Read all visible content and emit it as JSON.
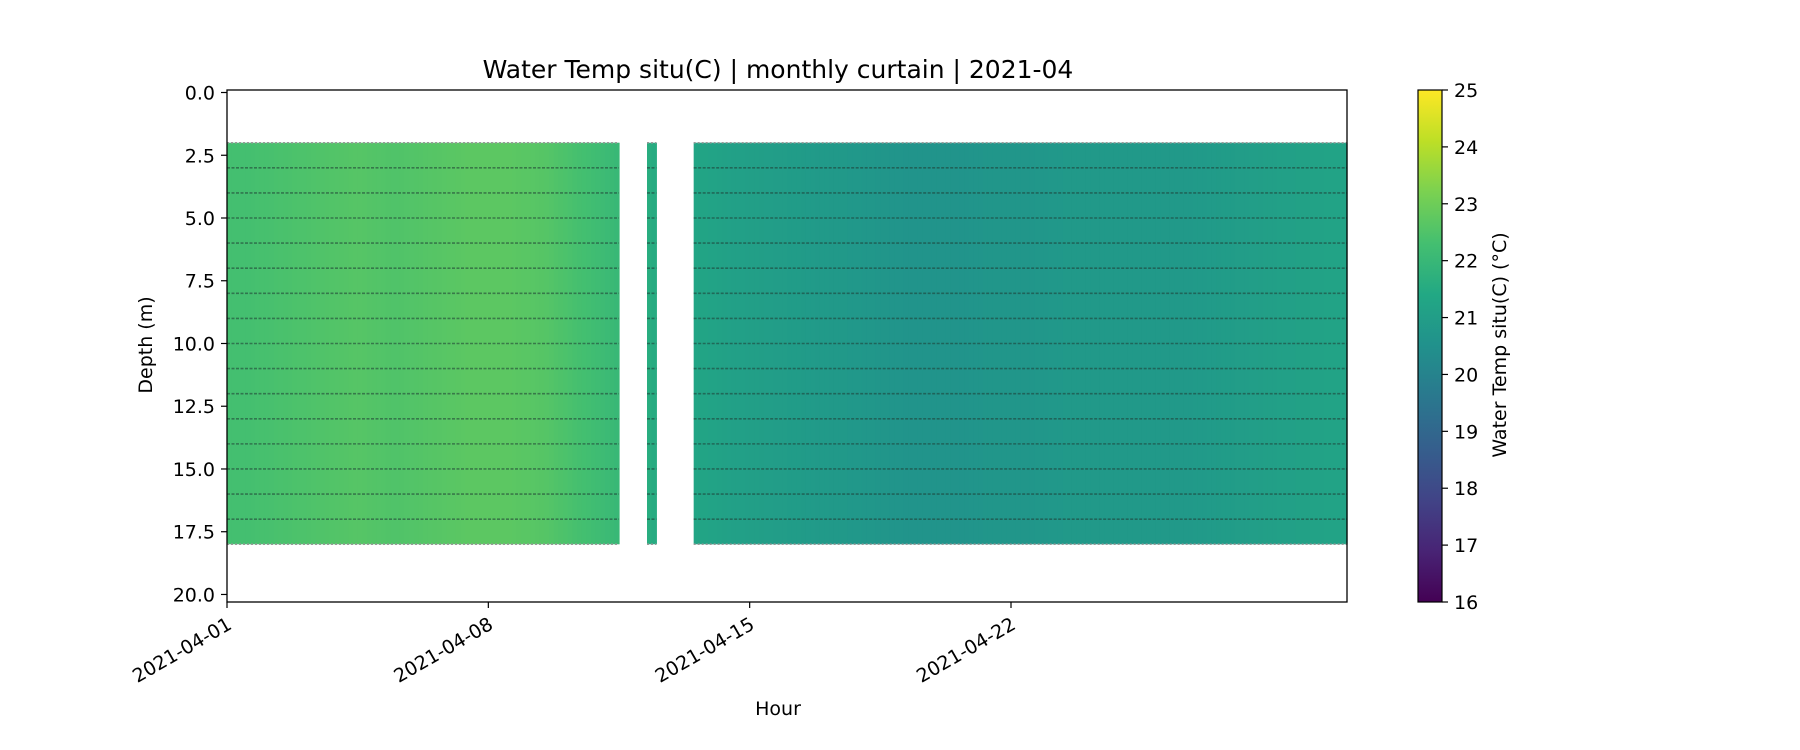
{
  "chart_data": {
    "type": "heatmap",
    "title": "Water Temp situ(C) | monthly curtain | 2021-04",
    "xlabel": "Hour",
    "ylabel": "Depth (m)",
    "colorbar_label": "Water Temp situ(C) (°C)",
    "colormap": "viridis",
    "xlim": [
      "2021-04-01",
      "2021-05-01"
    ],
    "ylim": [
      20.3,
      -0.1
    ],
    "y_inverted": true,
    "x_ticks": [
      "2021-04-01",
      "2021-04-08",
      "2021-04-15",
      "2021-04-22"
    ],
    "y_ticks": [
      0.0,
      2.5,
      5.0,
      7.5,
      10.0,
      12.5,
      15.0,
      17.5,
      20.0
    ],
    "y_tick_labels": [
      "0.0",
      "2.5",
      "5.0",
      "7.5",
      "10.0",
      "12.5",
      "15.0",
      "17.5",
      "20.0"
    ],
    "colorbar_range": [
      16,
      25
    ],
    "colorbar_ticks": [
      16,
      17,
      18,
      19,
      20,
      21,
      22,
      23,
      24,
      25
    ],
    "sensor_depths_m": [
      3,
      4,
      5,
      6,
      7,
      8,
      9,
      10,
      11,
      12,
      13,
      14,
      15,
      16,
      17
    ],
    "data_depth_range_m": [
      2.0,
      18.0
    ],
    "data_segments": [
      {
        "start": "2021-04-01",
        "end": "2021-04-11 12:00"
      },
      {
        "start": "2021-04-12 06:00",
        "end": "2021-04-12 12:00"
      },
      {
        "start": "2021-04-13 12:00",
        "end": "2021-05-01"
      }
    ],
    "daily_mean_temp_c": [
      {
        "date": "2021-04-01",
        "value": 22.3
      },
      {
        "date": "2021-04-02",
        "value": 22.4
      },
      {
        "date": "2021-04-03",
        "value": 22.5
      },
      {
        "date": "2021-04-04",
        "value": 22.6
      },
      {
        "date": "2021-04-05",
        "value": 22.5
      },
      {
        "date": "2021-04-06",
        "value": 22.6
      },
      {
        "date": "2021-04-07",
        "value": 22.7
      },
      {
        "date": "2021-04-08",
        "value": 22.7
      },
      {
        "date": "2021-04-09",
        "value": 22.6
      },
      {
        "date": "2021-04-10",
        "value": 22.3
      },
      {
        "date": "2021-04-11",
        "value": 22.0
      },
      {
        "date": "2021-04-12",
        "value": 21.5
      },
      {
        "date": "2021-04-13",
        "value": 21.3
      },
      {
        "date": "2021-04-14",
        "value": 21.1
      },
      {
        "date": "2021-04-15",
        "value": 21.0
      },
      {
        "date": "2021-04-16",
        "value": 20.9
      },
      {
        "date": "2021-04-17",
        "value": 20.8
      },
      {
        "date": "2021-04-18",
        "value": 20.7
      },
      {
        "date": "2021-04-19",
        "value": 20.6
      },
      {
        "date": "2021-04-20",
        "value": 20.6
      },
      {
        "date": "2021-04-21",
        "value": 20.7
      },
      {
        "date": "2021-04-22",
        "value": 20.7
      },
      {
        "date": "2021-04-23",
        "value": 20.8
      },
      {
        "date": "2021-04-24",
        "value": 20.8
      },
      {
        "date": "2021-04-25",
        "value": 20.8
      },
      {
        "date": "2021-04-26",
        "value": 20.8
      },
      {
        "date": "2021-04-27",
        "value": 20.9
      },
      {
        "date": "2021-04-28",
        "value": 21.0
      },
      {
        "date": "2021-04-29",
        "value": 21.1
      },
      {
        "date": "2021-04-30",
        "value": 21.2
      }
    ]
  }
}
